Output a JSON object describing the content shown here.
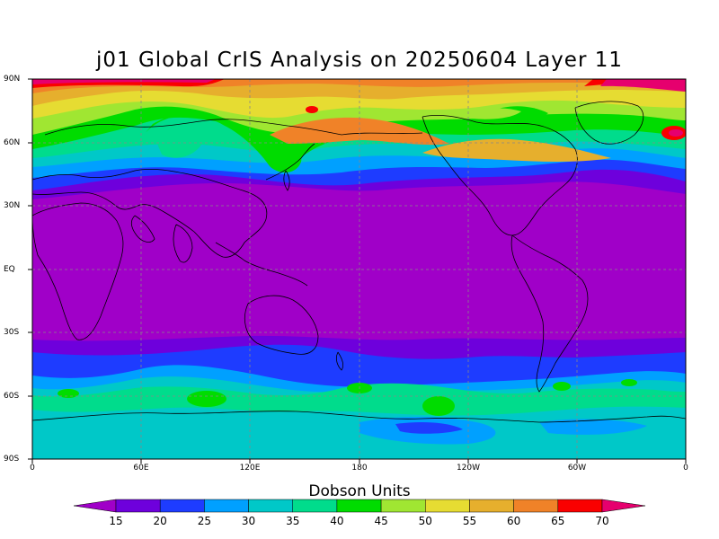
{
  "title": "j01 Global CrIS Analysis on 20250604 Layer 11",
  "axes": {
    "y_ticks": [
      "90N",
      "60N",
      "30N",
      "EQ",
      "30S",
      "60S",
      "90S"
    ],
    "x_ticks": [
      "0",
      "60E",
      "120E",
      "180",
      "120W",
      "60W",
      "0"
    ]
  },
  "colorbar": {
    "title": "Dobson Units",
    "levels": [
      "15",
      "20",
      "25",
      "30",
      "35",
      "40",
      "45",
      "50",
      "55",
      "60",
      "65",
      "70"
    ],
    "colors": [
      "#a000c8",
      "#6e00dc",
      "#1e3cff",
      "#00a0ff",
      "#00c8c8",
      "#00dc8c",
      "#00dc00",
      "#a0e632",
      "#e6dc32",
      "#e6af2d",
      "#f08228",
      "#fa0000",
      "#e6006e"
    ]
  },
  "map": {
    "projection": "cylindrical-equidistant",
    "lat_range": [
      -90,
      90
    ],
    "lon_range": [
      0,
      360
    ],
    "grid": true
  }
}
